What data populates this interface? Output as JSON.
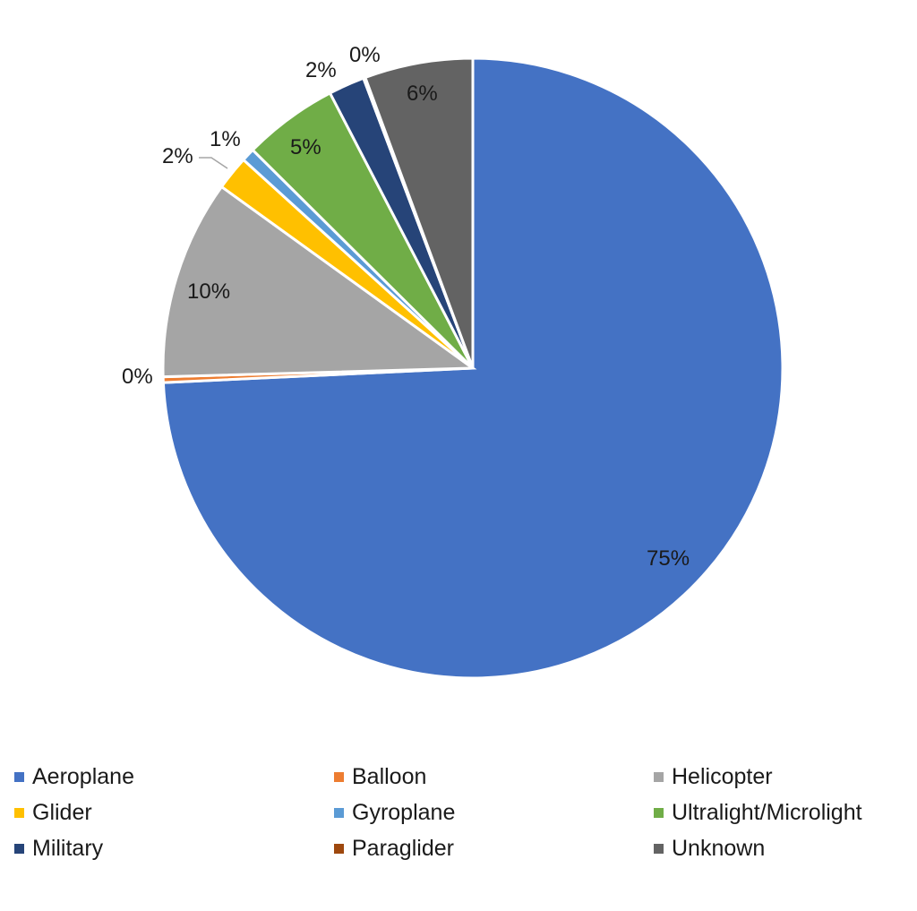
{
  "chart_data": {
    "type": "pie",
    "title": "",
    "start_angle_deg": 0,
    "direction": "clockwise",
    "legend_position": "bottom",
    "categories": [
      "Aeroplane",
      "Balloon",
      "Helicopter",
      "Glider",
      "Gyroplane",
      "Ultralight/Microlight",
      "Military",
      "Paraglider",
      "Unknown"
    ],
    "values": [
      75.0,
      0.3,
      10.5,
      1.8,
      0.7,
      5.0,
      1.9,
      0.1,
      5.7
    ],
    "labels": [
      "75%",
      "0%",
      "10%",
      "2%",
      "1%",
      "5%",
      "2%",
      "0%",
      "6%"
    ],
    "colors": [
      "#4472C4",
      "#ED7D31",
      "#A5A5A5",
      "#FFC000",
      "#5B9BD5",
      "#70AD47",
      "#264478",
      "#9E480E",
      "#636363"
    ]
  },
  "legend": [
    {
      "label": "Aeroplane",
      "color": "#4472C4"
    },
    {
      "label": "Balloon",
      "color": "#ED7D31"
    },
    {
      "label": "Helicopter",
      "color": "#A5A5A5"
    },
    {
      "label": "Glider",
      "color": "#FFC000"
    },
    {
      "label": "Gyroplane",
      "color": "#5B9BD5"
    },
    {
      "label": "Ultralight/Microlight",
      "color": "#70AD47"
    },
    {
      "label": "Military",
      "color": "#264478"
    },
    {
      "label": "Paraglider",
      "color": "#9E480E"
    },
    {
      "label": "Unknown",
      "color": "#636363"
    }
  ]
}
